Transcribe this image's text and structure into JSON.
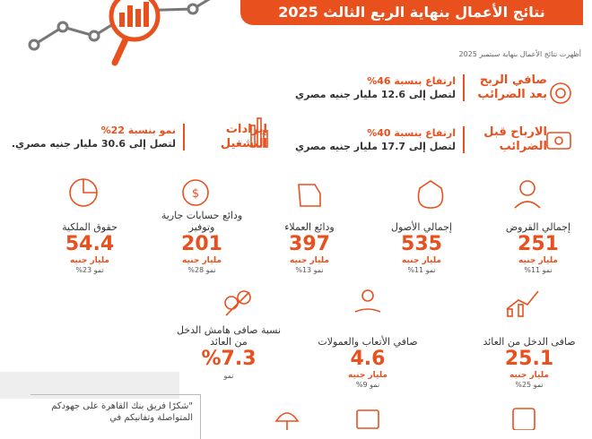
{
  "header": {
    "title": "نتائج الأعمال بنهاية الربع الثالث 2025",
    "subtitle": "أظهرت نتائج الأعمال بنهاية سبتمبر 2025"
  },
  "highlights": [
    {
      "label": "صافي الربح بعد الضرائب",
      "line1": "ارتفاع بنسبة 46%",
      "line2": "لتصل إلى 12.6 مليار جنيه مصري"
    },
    {
      "label": "الارباح قبل الضرائب",
      "line1": "ارتفاع بنسبة 40%",
      "line2": "لتصل إلى 17.7 مليار جنيه مصري"
    },
    {
      "label": "إيرادات التشغيل",
      "line1": "نمو بنسبة 22%",
      "line2": "لتصل إلى 30.6 مليار جنيه مصري."
    }
  ],
  "metrics": [
    {
      "label": "إجمالي القروض",
      "value": "251",
      "unit": "مليار جنيه",
      "growth": "نمو 11%"
    },
    {
      "label": "إجمالي الأصول",
      "value": "535",
      "unit": "مليار جنيه",
      "growth": "نمو 11%"
    },
    {
      "label": "ودائع العملاء",
      "value": "397",
      "unit": "مليار جنيه",
      "growth": "نمو 13%"
    },
    {
      "label": "ودائع حسابات جارية وتوفير",
      "value": "201",
      "unit": "مليار جنيه",
      "growth": "نمو 28%"
    },
    {
      "label": "حقوق الملكية",
      "value": "54.4",
      "unit": "مليار جنيه",
      "growth": "نمو 23%"
    },
    {
      "label": "صافى الدخل من العائد",
      "value": "25.1",
      "unit": "مليار جنيه",
      "growth": "نمو 25%"
    },
    {
      "label": "صافي الأتعاب والعمولات",
      "value": "4.6",
      "unit": "مليار جنيه",
      "growth": "نمو 9%"
    },
    {
      "label": "نسبة صافى هامش الدخل من العائد",
      "value": "%7.3",
      "growth": "نمو"
    }
  ],
  "quote": "\"شكرًا فريق بنك القاهرة على جهودكم المتواصلة وتفانيكم في"
}
